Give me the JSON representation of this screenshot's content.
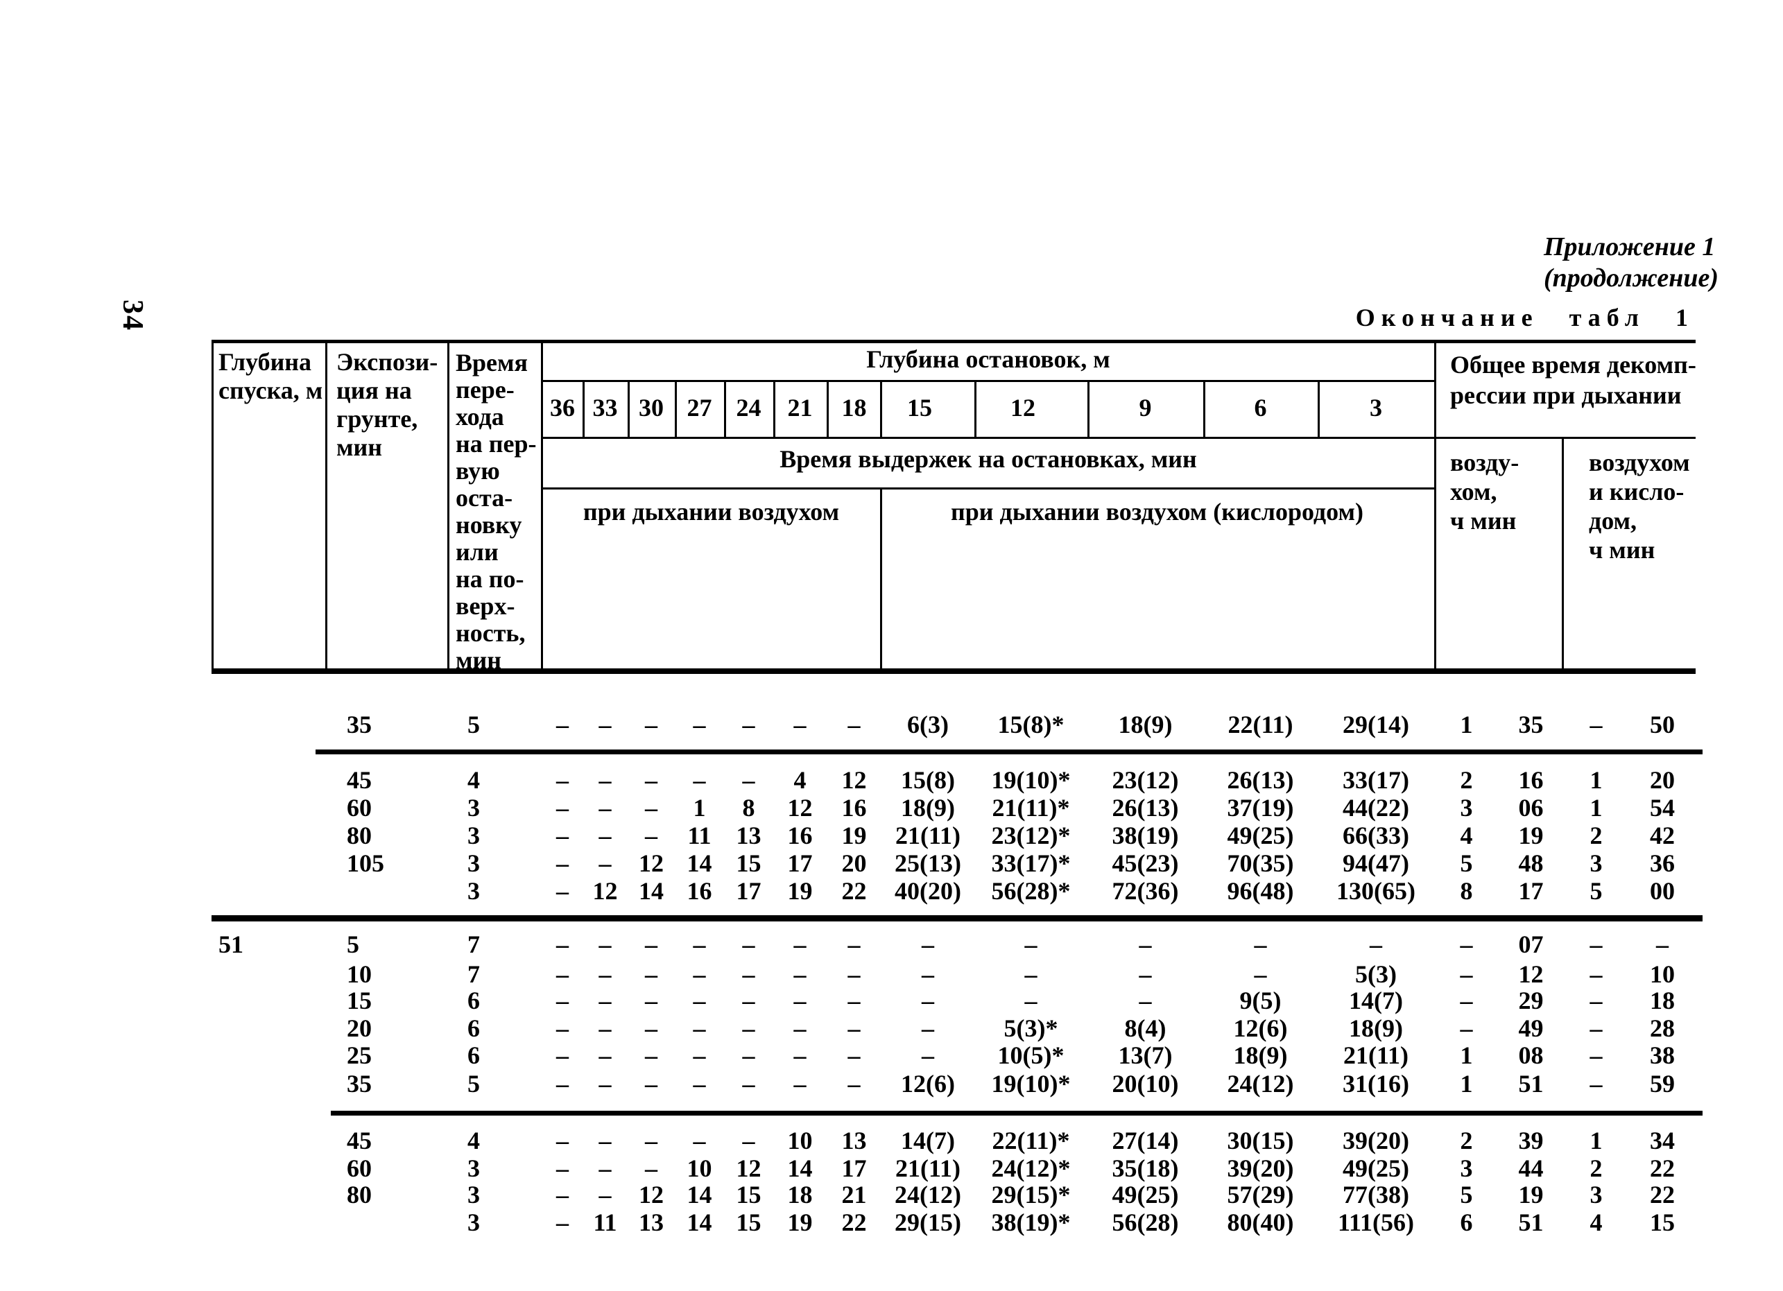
{
  "page": {
    "page_number": "34",
    "annex_note": "Приложение 1\n(продолжение)",
    "table_caption": "Окончание табл 1"
  },
  "table": {
    "header": {
      "col_depth": "Глубина\nспуска, м",
      "col_exposure": "Экспози-\nция на\nгрунте,\nмин",
      "col_transfer": "Время\nпере-\nхода\nна пер-\nвую\nоста-\nновку\nили\nна по-\nверх-\nность,\nмин",
      "stops_title": "Глубина остановок, м",
      "stop_depths": [
        "36",
        "33",
        "30",
        "27",
        "24",
        "21",
        "18",
        "15",
        "12",
        "9",
        "6",
        "3"
      ],
      "holds_title": "Время выдержек на остановках, мин",
      "air_section": "при дыхании воздухом",
      "oxygen_section": "при дыхании воздухом (кислородом)",
      "total_title": "Общее время декомп-\nрессии при дыхании",
      "total_air": "возду-\nхом,\nч  мин",
      "total_mix": "воздухом\nи кисло-\nдом,\nч  мин"
    },
    "rows": [
      {
        "depth": "",
        "exposure": "35",
        "transfer": "5",
        "stops": [
          "–",
          "–",
          "–",
          "–",
          "–",
          "–",
          "–",
          "6(3)",
          "15(8)*",
          "18(9)",
          "22(11)",
          "29(14)"
        ],
        "air_h": "1",
        "air_min": "35",
        "mix_h": "–",
        "mix_min": "50"
      },
      {
        "depth": "",
        "exposure": "45",
        "transfer": "4",
        "stops": [
          "–",
          "–",
          "–",
          "–",
          "–",
          "4",
          "12",
          "15(8)",
          "19(10)*",
          "23(12)",
          "26(13)",
          "33(17)"
        ],
        "air_h": "2",
        "air_min": "16",
        "mix_h": "1",
        "mix_min": "20"
      },
      {
        "depth": "",
        "exposure": "60",
        "transfer": "3",
        "stops": [
          "–",
          "–",
          "–",
          "1",
          "8",
          "12",
          "16",
          "18(9)",
          "21(11)*",
          "26(13)",
          "37(19)",
          "44(22)"
        ],
        "air_h": "3",
        "air_min": "06",
        "mix_h": "1",
        "mix_min": "54"
      },
      {
        "depth": "",
        "exposure": "80",
        "transfer": "3",
        "stops": [
          "–",
          "–",
          "–",
          "11",
          "13",
          "16",
          "19",
          "21(11)",
          "23(12)*",
          "38(19)",
          "49(25)",
          "66(33)"
        ],
        "air_h": "4",
        "air_min": "19",
        "mix_h": "2",
        "mix_min": "42"
      },
      {
        "depth": "",
        "exposure": "105",
        "transfer": "3",
        "stops": [
          "–",
          "–",
          "12",
          "14",
          "15",
          "17",
          "20",
          "25(13)",
          "33(17)*",
          "45(23)",
          "70(35)",
          "94(47)"
        ],
        "air_h": "5",
        "air_min": "48",
        "mix_h": "3",
        "mix_min": "36"
      },
      {
        "depth": "",
        "exposure": "",
        "transfer": "3",
        "stops": [
          "–",
          "12",
          "14",
          "16",
          "17",
          "19",
          "22",
          "40(20)",
          "56(28)*",
          "72(36)",
          "96(48)",
          "130(65)"
        ],
        "air_h": "8",
        "air_min": "17",
        "mix_h": "5",
        "mix_min": "00"
      },
      {
        "depth": "51",
        "exposure": "5",
        "transfer": "7",
        "stops": [
          "–",
          "–",
          "–",
          "–",
          "–",
          "–",
          "–",
          "–",
          "–",
          "–",
          "–",
          "–"
        ],
        "air_h": "–",
        "air_min": "07",
        "mix_h": "–",
        "mix_min": "–"
      },
      {
        "depth": "",
        "exposure": "10",
        "transfer": "7",
        "stops": [
          "–",
          "–",
          "–",
          "–",
          "–",
          "–",
          "–",
          "–",
          "–",
          "–",
          "–",
          "5(3)"
        ],
        "air_h": "–",
        "air_min": "12",
        "mix_h": "–",
        "mix_min": "10"
      },
      {
        "depth": "",
        "exposure": "15",
        "transfer": "6",
        "stops": [
          "–",
          "–",
          "–",
          "–",
          "–",
          "–",
          "–",
          "–",
          "–",
          "–",
          "9(5)",
          "14(7)"
        ],
        "air_h": "–",
        "air_min": "29",
        "mix_h": "–",
        "mix_min": "18"
      },
      {
        "depth": "",
        "exposure": "20",
        "transfer": "6",
        "stops": [
          "–",
          "–",
          "–",
          "–",
          "–",
          "–",
          "–",
          "–",
          "5(3)*",
          "8(4)",
          "12(6)",
          "18(9)"
        ],
        "air_h": "–",
        "air_min": "49",
        "mix_h": "–",
        "mix_min": "28"
      },
      {
        "depth": "",
        "exposure": "25",
        "transfer": "6",
        "stops": [
          "–",
          "–",
          "–",
          "–",
          "–",
          "–",
          "–",
          "–",
          "10(5)*",
          "13(7)",
          "18(9)",
          "21(11)"
        ],
        "air_h": "1",
        "air_min": "08",
        "mix_h": "–",
        "mix_min": "38"
      },
      {
        "depth": "",
        "exposure": "35",
        "transfer": "5",
        "stops": [
          "–",
          "–",
          "–",
          "–",
          "–",
          "–",
          "–",
          "12(6)",
          "19(10)*",
          "20(10)",
          "24(12)",
          "31(16)"
        ],
        "air_h": "1",
        "air_min": "51",
        "mix_h": "–",
        "mix_min": "59"
      },
      {
        "depth": "",
        "exposure": "45",
        "transfer": "4",
        "stops": [
          "–",
          "–",
          "–",
          "–",
          "–",
          "10",
          "13",
          "14(7)",
          "22(11)*",
          "27(14)",
          "30(15)",
          "39(20)"
        ],
        "air_h": "2",
        "air_min": "39",
        "mix_h": "1",
        "mix_min": "34"
      },
      {
        "depth": "",
        "exposure": "60",
        "transfer": "3",
        "stops": [
          "–",
          "–",
          "–",
          "10",
          "12",
          "14",
          "17",
          "21(11)",
          "24(12)*",
          "35(18)",
          "39(20)",
          "49(25)"
        ],
        "air_h": "3",
        "air_min": "44",
        "mix_h": "2",
        "mix_min": "22"
      },
      {
        "depth": "",
        "exposure": "80",
        "transfer": "3",
        "stops": [
          "–",
          "–",
          "12",
          "14",
          "15",
          "18",
          "21",
          "24(12)",
          "29(15)*",
          "49(25)",
          "57(29)",
          "77(38)"
        ],
        "air_h": "5",
        "air_min": "19",
        "mix_h": "3",
        "mix_min": "22"
      },
      {
        "depth": "",
        "exposure": "",
        "transfer": "3",
        "stops": [
          "–",
          "11",
          "13",
          "14",
          "15",
          "19",
          "22",
          "29(15)",
          "38(19)*",
          "56(28)",
          "80(40)",
          "111(56)"
        ],
        "air_h": "6",
        "air_min": "51",
        "mix_h": "4",
        "mix_min": "15"
      }
    ]
  }
}
